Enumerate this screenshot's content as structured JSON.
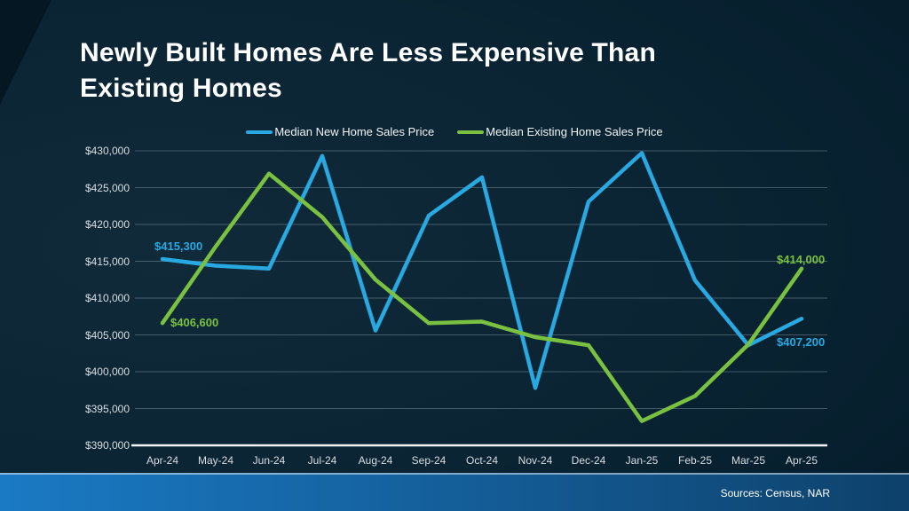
{
  "slide": {
    "title": "Newly Built Homes Are Less Expensive Than Existing Homes",
    "footer": {
      "sources": "Sources: Census, NAR"
    }
  },
  "legend": {
    "items": [
      {
        "label": "Median New Home Sales Price",
        "color": "#29a9e1"
      },
      {
        "label": "Median Existing Home Sales Price",
        "color": "#7ac142"
      }
    ]
  },
  "chart_data": {
    "type": "line",
    "title": "Newly Built Homes Are Less Expensive Than Existing Homes",
    "categories": [
      "Apr-24",
      "May-24",
      "Jun-24",
      "Jul-24",
      "Aug-24",
      "Sep-24",
      "Oct-24",
      "Nov-24",
      "Dec-24",
      "Jan-25",
      "Feb-25",
      "Mar-25",
      "Apr-25"
    ],
    "series": [
      {
        "name": "Median New Home Sales Price",
        "color": "#29a9e1",
        "values": [
          415300,
          414400,
          414000,
          429300,
          405600,
          421200,
          426400,
          397800,
          423100,
          429700,
          412400,
          403600,
          407200
        ]
      },
      {
        "name": "Median Existing Home Sales Price",
        "color": "#7ac142",
        "values": [
          406600,
          417000,
          426900,
          421000,
          412500,
          406600,
          406800,
          404700,
          403600,
          393300,
          396700,
          403700,
          414000
        ]
      }
    ],
    "ylim": [
      390000,
      430000
    ],
    "y_tick_step": 5000,
    "y_tick_labels": [
      "$430,000",
      "$425,000",
      "$420,000",
      "$415,000",
      "$410,000",
      "$405,000",
      "$400,000",
      "$395,000",
      "$390,000"
    ],
    "grid": true,
    "legend_position": "top",
    "annotations": [
      {
        "text": "$415,300",
        "series": 0,
        "index": 0,
        "color": "#29a9e1"
      },
      {
        "text": "$406,600",
        "series": 1,
        "index": 0,
        "color": "#7ac142"
      },
      {
        "text": "$414,000",
        "series": 1,
        "index": 12,
        "color": "#7ac142"
      },
      {
        "text": "$407,200",
        "series": 0,
        "index": 12,
        "color": "#29a9e1"
      }
    ],
    "colors": {
      "background": "#0a2433",
      "gridline": "#aebfc8",
      "axis_line": "#f2f5f7",
      "footer_bar_left": "#1a7ac4",
      "footer_bar_right": "#0e416b"
    }
  }
}
